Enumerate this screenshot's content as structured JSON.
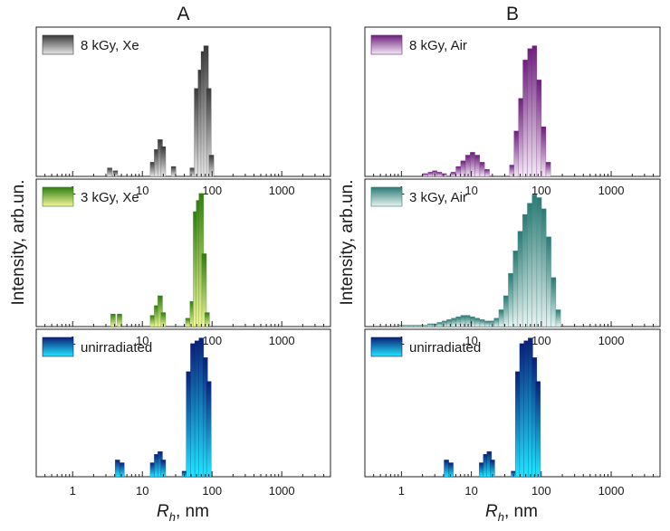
{
  "figure": {
    "y_axis_label": "Intensity, arb.un.",
    "x_axis_label_symbol": "R",
    "x_axis_label_subscript": "h",
    "x_axis_label_units": ", nm"
  },
  "colors": {
    "gray": [
      "#3a3a3a",
      "#e6e6e6"
    ],
    "green": [
      "#2f7d12",
      "#f4f69a"
    ],
    "blue": [
      "#0a1f78",
      "#22e6ff"
    ],
    "purple": [
      "#6d1f7c",
      "#f4e9f6"
    ],
    "teal": [
      "#2a7a74",
      "#e8f3f1"
    ]
  },
  "chart_data": [
    {
      "type": "bar",
      "column": "A",
      "title": "A",
      "legend": "8 kGy, Xe",
      "legend_position": "top-left",
      "color": "gray",
      "xscale": "log",
      "xlim": [
        0.3,
        5000
      ],
      "ylim": [
        0,
        1
      ],
      "xticks": [
        1,
        10,
        100,
        1000
      ],
      "xtick_labels": [
        "1",
        "10",
        "100",
        "1000"
      ],
      "x": [
        3.4,
        4.1,
        14,
        16,
        18,
        20,
        28,
        52,
        60,
        68,
        75,
        82,
        90,
        98
      ],
      "values": [
        0.06,
        0.04,
        0.1,
        0.19,
        0.26,
        0.21,
        0.07,
        0.06,
        0.62,
        0.75,
        0.88,
        0.92,
        0.62,
        0.15
      ]
    },
    {
      "type": "bar",
      "column": "A",
      "title": "",
      "legend": "3 kGy, Xe",
      "legend_position": "top-left",
      "color": "green",
      "xscale": "log",
      "xlim": [
        0.3,
        5000
      ],
      "ylim": [
        0,
        1
      ],
      "xticks": [
        1,
        10,
        100,
        1000
      ],
      "xtick_labels": [
        "1",
        "10",
        "100",
        "1000"
      ],
      "x": [
        3.8,
        4.7,
        14,
        16,
        18,
        20,
        45,
        52,
        58,
        64,
        70,
        77,
        85
      ],
      "values": [
        0.09,
        0.09,
        0.08,
        0.15,
        0.22,
        0.1,
        0.06,
        0.18,
        0.82,
        0.9,
        0.95,
        0.52,
        0.1
      ]
    },
    {
      "type": "bar",
      "column": "A",
      "title": "",
      "legend": "unirradiated",
      "legend_position": "top-left",
      "color": "blue",
      "xscale": "log",
      "xlim": [
        0.3,
        5000
      ],
      "ylim": [
        0,
        1
      ],
      "xticks": [
        1,
        10,
        100,
        1000
      ],
      "xtick_labels": [
        "1",
        "10",
        "100",
        "1000"
      ],
      "x": [
        4.4,
        5.1,
        14,
        16,
        18,
        20,
        40,
        46,
        53,
        61,
        70,
        80,
        90
      ],
      "values": [
        0.12,
        0.1,
        0.1,
        0.16,
        0.18,
        0.12,
        0.04,
        0.75,
        0.95,
        0.97,
        0.99,
        0.85,
        0.68
      ]
    },
    {
      "type": "bar",
      "column": "B",
      "title": "B",
      "legend": "8 kGy, Air",
      "legend_position": "top-left",
      "color": "purple",
      "xscale": "log",
      "xlim": [
        0.3,
        5000
      ],
      "ylim": [
        0,
        1
      ],
      "xticks": [
        1,
        10,
        100,
        1000
      ],
      "xtick_labels": [
        "1",
        "10",
        "100",
        "1000"
      ],
      "x": [
        2.2,
        2.6,
        3.0,
        3.5,
        4.1,
        5.5,
        6.5,
        7.6,
        8.9,
        10.4,
        12.2,
        14.3,
        16.8,
        38,
        44,
        51,
        59,
        69,
        80,
        93,
        108,
        126
      ],
      "values": [
        0.02,
        0.03,
        0.04,
        0.03,
        0.02,
        0.03,
        0.07,
        0.11,
        0.15,
        0.17,
        0.15,
        0.1,
        0.05,
        0.08,
        0.32,
        0.55,
        0.82,
        0.9,
        0.92,
        0.68,
        0.35,
        0.1
      ]
    },
    {
      "type": "bar",
      "column": "B",
      "title": "",
      "legend": "3 kGy, Air",
      "legend_position": "top-left",
      "color": "teal",
      "xscale": "log",
      "xlim": [
        0.3,
        5000
      ],
      "ylim": [
        0,
        1
      ],
      "xticks": [
        1,
        10,
        100,
        1000
      ],
      "xtick_labels": [
        "1",
        "10",
        "100",
        "1000"
      ],
      "x": [
        1.0,
        1.17,
        1.37,
        1.6,
        1.87,
        2.19,
        2.56,
        2.99,
        3.5,
        4.1,
        4.8,
        5.6,
        6.5,
        7.6,
        8.9,
        10.4,
        12.2,
        14.3,
        16.7,
        19.5,
        22.8,
        26.7,
        31.2,
        36.5,
        42.7,
        49.9,
        58.4,
        68.3,
        79.9,
        93.4,
        109,
        128,
        150,
        175
      ],
      "values": [
        0.01,
        0.01,
        0.01,
        0.01,
        0.01,
        0.01,
        0.02,
        0.02,
        0.03,
        0.04,
        0.05,
        0.06,
        0.07,
        0.08,
        0.08,
        0.07,
        0.06,
        0.05,
        0.04,
        0.04,
        0.06,
        0.12,
        0.22,
        0.38,
        0.54,
        0.68,
        0.8,
        0.88,
        0.94,
        0.92,
        0.84,
        0.64,
        0.35,
        0.12
      ]
    },
    {
      "type": "bar",
      "column": "B",
      "title": "",
      "legend": "unirradiated",
      "legend_position": "top-left",
      "color": "blue",
      "xscale": "log",
      "xlim": [
        0.3,
        5000
      ],
      "ylim": [
        0,
        1
      ],
      "xticks": [
        1,
        10,
        100,
        1000
      ],
      "xtick_labels": [
        "1",
        "10",
        "100",
        "1000"
      ],
      "x": [
        4.4,
        5.1,
        14,
        16,
        18,
        20,
        40,
        46,
        53,
        61,
        70,
        80,
        90
      ],
      "values": [
        0.12,
        0.1,
        0.1,
        0.16,
        0.18,
        0.12,
        0.04,
        0.75,
        0.95,
        0.97,
        0.99,
        0.85,
        0.68
      ]
    }
  ]
}
